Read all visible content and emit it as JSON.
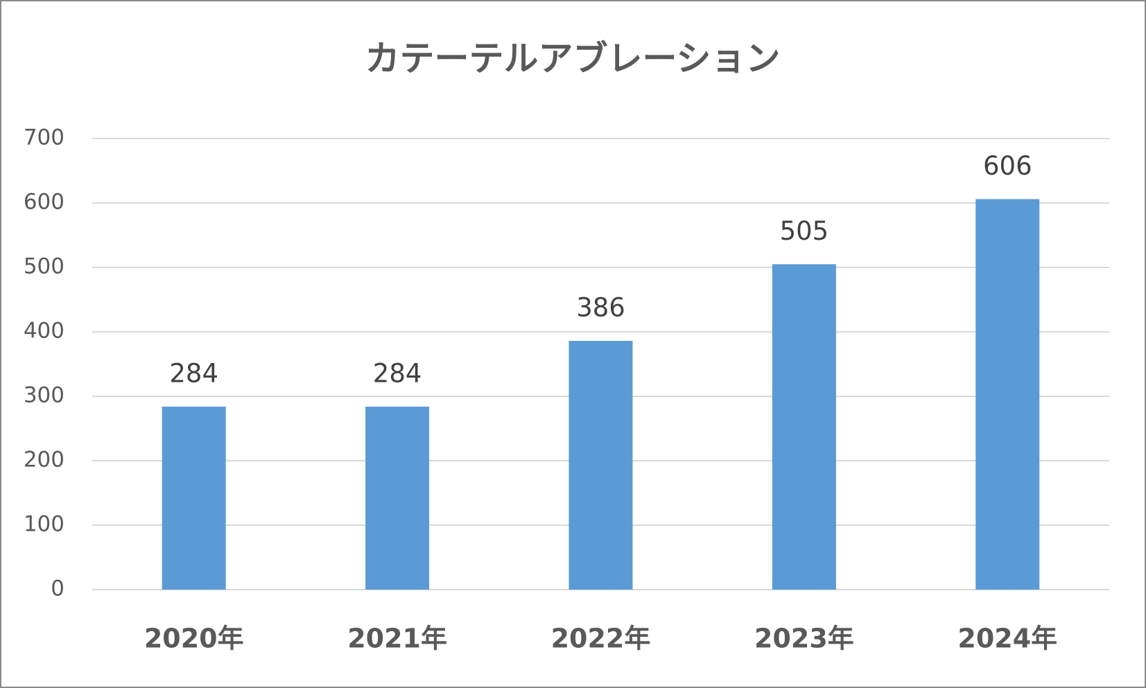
{
  "chart_data": {
    "type": "bar",
    "title": "カテーテルアブレーション",
    "categories": [
      "2020年",
      "2021年",
      "2022年",
      "2023年",
      "2024年"
    ],
    "values": [
      284,
      284,
      386,
      505,
      606
    ],
    "color": "#5b9bd5",
    "ylim": [
      0,
      700
    ],
    "yticks": [
      0,
      100,
      200,
      300,
      400,
      500,
      600,
      700
    ],
    "grid": true
  }
}
